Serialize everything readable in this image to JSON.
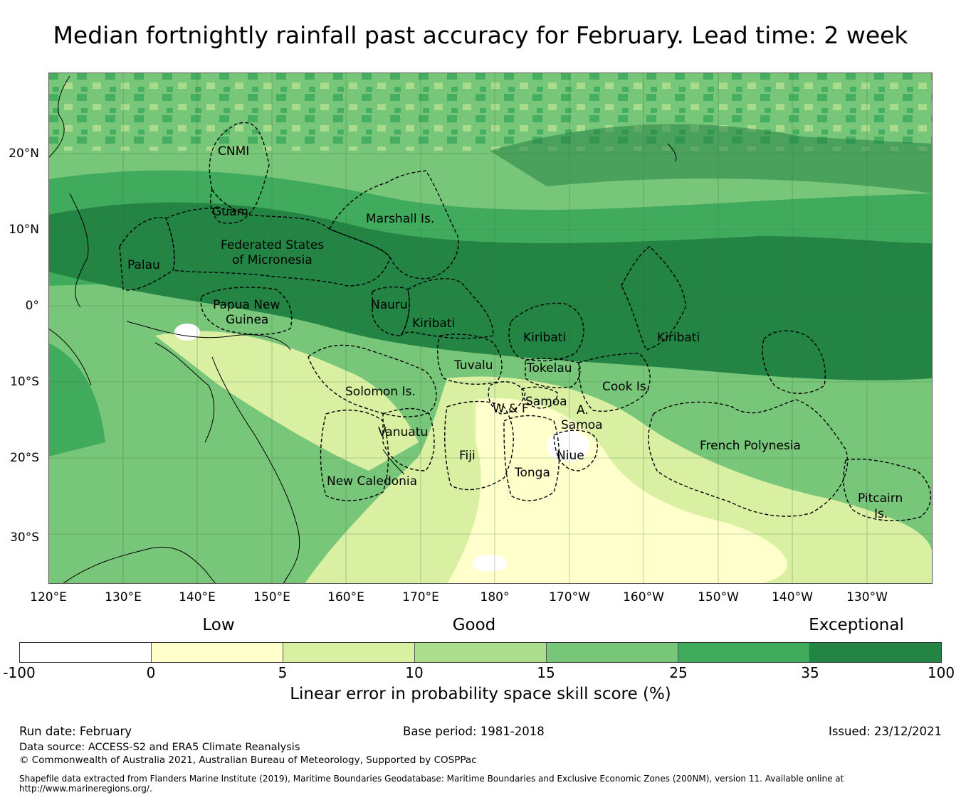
{
  "title": "Median fortnightly rainfall past accuracy for February. Lead time: 2 week",
  "map": {
    "longitude_labels": [
      "120°E",
      "130°E",
      "140°E",
      "150°E",
      "160°E",
      "170°E",
      "180°",
      "170°W",
      "160°W",
      "150°W",
      "140°W",
      "130°W"
    ],
    "latitude_labels": [
      "20°N",
      "10°N",
      "0°",
      "10°S",
      "20°S",
      "30°S"
    ],
    "regions": [
      "CNMI",
      "Guam",
      "Marshall Is.",
      "Federated States",
      "of Micronesia",
      "Palau",
      "Papua New",
      "Guinea",
      "Nauru",
      "Kiribati",
      "Kiribati",
      "Kiribati",
      "Tuvalu",
      "Tokelau",
      "Cook Is.",
      "Solomon Is.",
      "Samoa",
      "W & F",
      "A.",
      "Samoa",
      "Vanuatu",
      "Fiji",
      "Niue",
      "Tonga",
      "French Polynesia",
      "New Caledonia",
      "Pitcairn",
      "Is."
    ]
  },
  "legend": {
    "categories": [
      "Low",
      "Good",
      "Exceptional"
    ],
    "ticks": [
      "-100",
      "0",
      "5",
      "10",
      "15",
      "25",
      "35",
      "100"
    ],
    "colors": [
      "#ffffff",
      "#ffffcc",
      "#d9f0a3",
      "#addd8e",
      "#78c679",
      "#41ab5d",
      "#238443"
    ],
    "label": "Linear error in probability space skill score (%)"
  },
  "footer": {
    "run_date": "Run date: February",
    "base_period": "Base period: 1981-2018",
    "issued": "Issued: 23/12/2021",
    "data_source": "Data source: ACCESS-S2 and ERA5 Climate Reanalysis",
    "copyright": "© Commonwealth of Australia 2021, Australian Bureau of Meteorology, Supported by COSPPac",
    "shapefile": "Shapefile data extracted from Flanders Marine Institute (2019), Maritime Boundaries Geodatabase: Maritime Boundaries and Exclusive Economic Zones (200NM), version 11. Available online at http://www.marineregions.org/."
  }
}
